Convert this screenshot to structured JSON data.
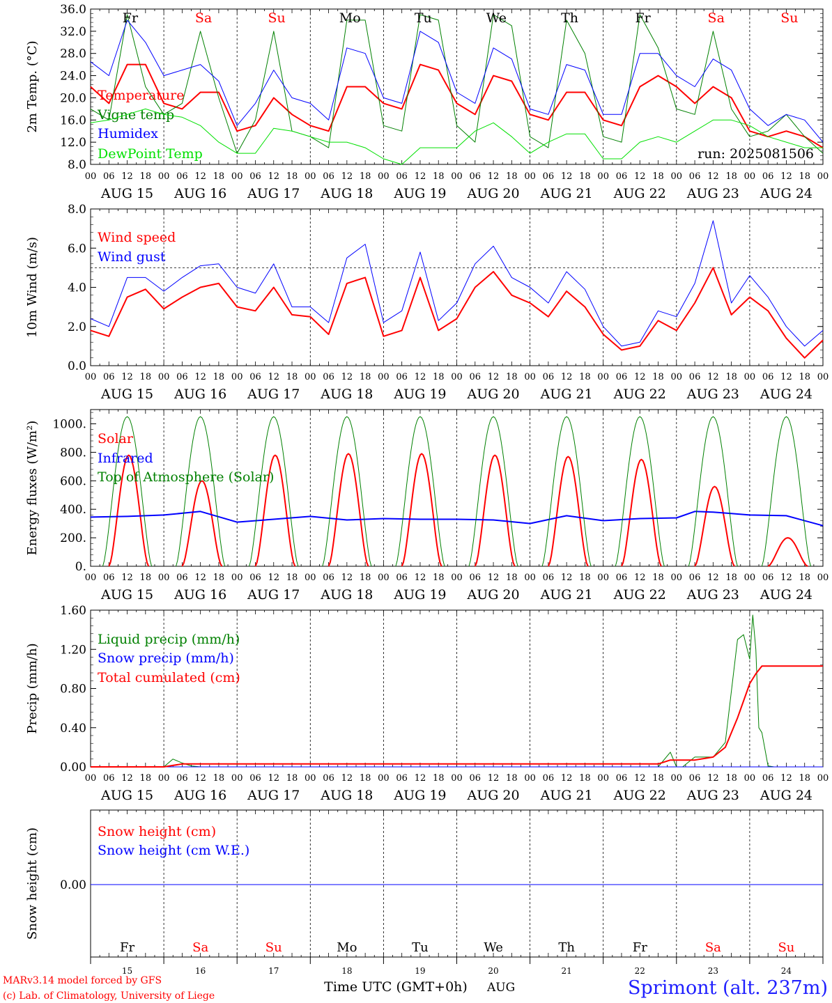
{
  "title": "",
  "station": "Sprimont (alt. 237m)",
  "footer": {
    "model": "MARv3.14 model forced by GFS",
    "credit": "(c) Lab. of Climatology, University of Liege",
    "xlabel": "Time UTC (GMT+0h)",
    "month": "AUG"
  },
  "run_label": "run: 2025081506",
  "days": {
    "names": [
      "Fr",
      "Sa",
      "Su",
      "Mo",
      "Tu",
      "We",
      "Th",
      "Fr",
      "Sa",
      "Su"
    ],
    "dates": [
      "AUG 15",
      "AUG 16",
      "AUG 17",
      "AUG 18",
      "AUG 19",
      "AUG 20",
      "AUG 21",
      "AUG 22",
      "AUG 23",
      "AUG 24"
    ],
    "numbers": [
      "15",
      "16",
      "17",
      "18",
      "19",
      "20",
      "21",
      "22",
      "23",
      "24"
    ],
    "weekend": [
      false,
      true,
      true,
      false,
      false,
      false,
      false,
      false,
      true,
      true
    ],
    "hour_ticks": [
      "00",
      "06",
      "12",
      "18"
    ],
    "final_hour": "00"
  },
  "colors": {
    "red": "#ff0000",
    "green": "#008000",
    "blue": "#0000ff",
    "lightgreen": "#00e000",
    "station": "#2020ff"
  },
  "chart_data": [
    {
      "type": "line",
      "ylabel": "2m Temp. (°C)",
      "ylim": [
        8,
        36
      ],
      "yticks": [
        "8.0",
        "12.0",
        "16.0",
        "20.0",
        "24.0",
        "28.0",
        "32.0",
        "36.0"
      ],
      "x_units": "hours since AUG 15 00 UTC",
      "legend_placement": "left",
      "series": [
        {
          "name": "Temperature",
          "color": "red",
          "width": 2,
          "x": [
            0,
            6,
            12,
            18,
            24,
            30,
            36,
            42,
            48,
            54,
            60,
            66,
            72,
            78,
            84,
            90,
            96,
            102,
            108,
            114,
            120,
            126,
            132,
            138,
            144,
            150,
            156,
            162,
            168,
            174,
            180,
            186,
            192,
            198,
            204,
            210,
            216,
            222,
            228,
            234,
            240
          ],
          "y": [
            22,
            19,
            26,
            26,
            19,
            18,
            21,
            21,
            14,
            15,
            20,
            17,
            15,
            14,
            22,
            22,
            19,
            18,
            26,
            25,
            19,
            17,
            24,
            23,
            17,
            16,
            21,
            21,
            16,
            15,
            22,
            24,
            22,
            19,
            22,
            20,
            14,
            13,
            14,
            13,
            11
          ]
        },
        {
          "name": "Vigne temp",
          "color": "green",
          "width": 1,
          "x": [
            0,
            6,
            12,
            18,
            24,
            30,
            36,
            42,
            48,
            54,
            60,
            66,
            72,
            78,
            84,
            90,
            96,
            102,
            108,
            114,
            120,
            126,
            132,
            138,
            144,
            150,
            156,
            162,
            168,
            174,
            180,
            186,
            192,
            198,
            204,
            210,
            216,
            222,
            228,
            234,
            240
          ],
          "y": [
            18,
            16,
            35,
            22,
            17,
            19,
            32,
            20,
            10,
            16,
            32,
            14,
            13,
            11,
            34,
            34,
            15,
            14,
            35,
            34,
            15,
            12,
            35,
            33,
            13,
            11,
            34,
            28,
            13,
            12,
            35,
            29,
            18,
            17,
            32,
            18,
            13,
            14,
            17,
            13,
            10
          ]
        },
        {
          "name": "Humidex",
          "color": "blue",
          "width": 1,
          "x": [
            0,
            6,
            12,
            18,
            24,
            30,
            36,
            42,
            48,
            54,
            60,
            66,
            72,
            78,
            84,
            90,
            96,
            102,
            108,
            114,
            120,
            126,
            132,
            138,
            144,
            150,
            156,
            162,
            168,
            174,
            180,
            186,
            192,
            198,
            204,
            210,
            216,
            222,
            228,
            234,
            240
          ],
          "y": [
            26.5,
            24,
            34,
            30,
            24,
            25,
            26,
            23,
            15,
            19,
            25,
            20,
            19,
            16,
            29,
            28,
            20,
            19,
            32,
            30,
            21,
            19,
            29,
            27,
            18,
            17,
            26,
            25,
            17,
            17,
            28,
            28,
            24,
            22,
            27,
            25,
            18,
            15,
            17,
            16,
            12
          ]
        },
        {
          "name": "DewPoint Temp",
          "color": "lightgreen",
          "width": 1,
          "x": [
            0,
            6,
            12,
            18,
            24,
            30,
            36,
            42,
            48,
            54,
            60,
            66,
            72,
            78,
            84,
            90,
            96,
            102,
            108,
            114,
            120,
            126,
            132,
            138,
            144,
            150,
            156,
            162,
            168,
            174,
            180,
            186,
            192,
            198,
            204,
            210,
            216,
            222,
            228,
            234,
            240
          ],
          "y": [
            15.5,
            16,
            17,
            18,
            17,
            16.5,
            15,
            12,
            10,
            10,
            14.5,
            14,
            13,
            12,
            12,
            11,
            9,
            8,
            11,
            11,
            11,
            14,
            15.5,
            13,
            10,
            12,
            13.5,
            13.5,
            9,
            9,
            12,
            13,
            12,
            14,
            16,
            16,
            15,
            13,
            12,
            11,
            11
          ]
        }
      ]
    },
    {
      "type": "line",
      "ylabel": "10m Wind (m/s)",
      "ylim": [
        0,
        8
      ],
      "yticks": [
        "0.0",
        "2.0",
        "4.0",
        "6.0",
        "8.0"
      ],
      "reference_line": 5,
      "legend_placement": "left",
      "series": [
        {
          "name": "Wind speed",
          "color": "red",
          "width": 2,
          "x": [
            0,
            6,
            12,
            18,
            24,
            30,
            36,
            42,
            48,
            54,
            60,
            66,
            72,
            78,
            84,
            90,
            96,
            102,
            108,
            114,
            120,
            126,
            132,
            138,
            144,
            150,
            156,
            162,
            168,
            174,
            180,
            186,
            192,
            198,
            204,
            210,
            216,
            222,
            228,
            234,
            240
          ],
          "y": [
            1.8,
            1.5,
            3.5,
            3.9,
            2.9,
            3.5,
            4,
            4.2,
            3,
            2.8,
            4,
            2.6,
            2.5,
            1.6,
            4.2,
            4.5,
            1.5,
            1.8,
            4.5,
            1.8,
            2.4,
            4,
            4.8,
            3.6,
            3.2,
            2.5,
            3.8,
            3,
            1.6,
            0.8,
            1,
            2.3,
            1.8,
            3.2,
            5,
            2.6,
            3.5,
            2.8,
            1.4,
            0.4,
            1.3
          ]
        },
        {
          "name": "Wind gust",
          "color": "blue",
          "width": 1,
          "x": [
            0,
            6,
            12,
            18,
            24,
            30,
            36,
            42,
            48,
            54,
            60,
            66,
            72,
            78,
            84,
            90,
            96,
            102,
            108,
            114,
            120,
            126,
            132,
            138,
            144,
            150,
            156,
            162,
            168,
            174,
            180,
            186,
            192,
            198,
            204,
            210,
            216,
            222,
            228,
            234,
            240
          ],
          "y": [
            2.4,
            2,
            4.5,
            4.5,
            3.8,
            4.5,
            5.1,
            5.2,
            4,
            3.7,
            5.2,
            3,
            3,
            2.2,
            5.5,
            6.2,
            2.2,
            2.8,
            5.8,
            2.3,
            3.2,
            5.2,
            6.1,
            4.5,
            4,
            3.2,
            4.8,
            3.9,
            2,
            1,
            1.2,
            2.8,
            2.5,
            4.2,
            7.4,
            3.2,
            4.6,
            3.5,
            2,
            1,
            1.8
          ]
        }
      ]
    },
    {
      "type": "line",
      "ylabel": "Energy fluxes (W/m²)",
      "ylim": [
        0,
        1100
      ],
      "yticks": [
        "0.",
        "200.",
        "400.",
        "600.",
        "800.",
        "1000."
      ],
      "legend_placement": "left",
      "solar_peaks": [
        780,
        600,
        780,
        790,
        790,
        780,
        770,
        750,
        560,
        200
      ],
      "toa_peak": 1050,
      "series": [
        {
          "name": "Solar",
          "color": "red",
          "width": 2
        },
        {
          "name": "Infrared",
          "color": "blue",
          "width": 2,
          "x": [
            0,
            12,
            24,
            36,
            48,
            60,
            72,
            84,
            96,
            108,
            120,
            132,
            144,
            156,
            168,
            180,
            192,
            198,
            204,
            210,
            216,
            228,
            240
          ],
          "y": [
            345,
            350,
            360,
            385,
            310,
            330,
            350,
            325,
            335,
            330,
            330,
            325,
            300,
            355,
            320,
            335,
            340,
            385,
            380,
            370,
            360,
            355,
            285
          ]
        },
        {
          "name": "Top of Atmosphere (Solar)",
          "color": "green",
          "width": 1
        }
      ]
    },
    {
      "type": "line",
      "ylabel": "Precip (mm/h)",
      "ylim": [
        0,
        1.6
      ],
      "yticks": [
        "0.00",
        "0.40",
        "0.80",
        "1.20",
        "1.60"
      ],
      "legend_placement": "left",
      "series": [
        {
          "name": "Liquid precip (mm/h)",
          "color": "green",
          "width": 1,
          "x": [
            0,
            24,
            27,
            30,
            33,
            36,
            186,
            190,
            192,
            194,
            198,
            204,
            208,
            212,
            214,
            216,
            217,
            218,
            219,
            220,
            222,
            224,
            240
          ],
          "y": [
            0,
            0,
            0.08,
            0.04,
            0.01,
            0,
            0,
            0.15,
            0,
            0,
            0.1,
            0.1,
            0.25,
            1.3,
            1.35,
            1.1,
            1.55,
            1.2,
            0.4,
            0.35,
            0.01,
            0,
            0
          ]
        },
        {
          "name": "Snow precip (mm/h)",
          "color": "blue",
          "width": 1,
          "x": [
            0,
            240
          ],
          "y": [
            0,
            0
          ]
        },
        {
          "name": "Total cumulated (cm)",
          "color": "red",
          "width": 2,
          "x": [
            0,
            24,
            30,
            186,
            190,
            192,
            198,
            204,
            208,
            212,
            216,
            218,
            220,
            240
          ],
          "y": [
            0,
            0,
            0.03,
            0.03,
            0.07,
            0.07,
            0.07,
            0.1,
            0.2,
            0.5,
            0.85,
            0.95,
            1.03,
            1.03
          ]
        }
      ]
    },
    {
      "type": "line",
      "ylabel": "Snow height (cm)",
      "yticks": [
        "0.00"
      ],
      "legend_placement": "left",
      "series": [
        {
          "name": "Snow height (cm)",
          "color": "red",
          "width": 1,
          "x": [
            0,
            240
          ],
          "y": [
            0,
            0
          ]
        },
        {
          "name": "Snow height (cm W.E.)",
          "color": "blue",
          "width": 1,
          "x": [
            0,
            240
          ],
          "y": [
            0,
            0
          ]
        }
      ]
    }
  ]
}
